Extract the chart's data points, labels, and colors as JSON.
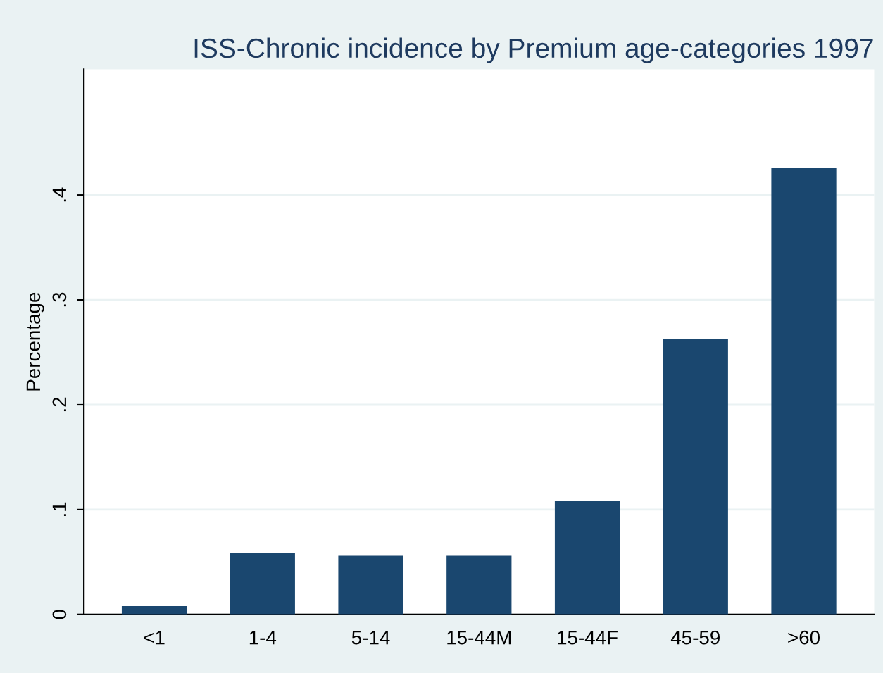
{
  "chart_data": {
    "type": "bar",
    "title": "ISS-Chronic incidence by Premium age-categories 1997",
    "ylabel": "Percentage",
    "categories": [
      "<1",
      "1-4",
      "5-14",
      "15-44M",
      "15-44F",
      "45-59",
      ">60"
    ],
    "values": [
      0.008,
      0.059,
      0.056,
      0.056,
      0.108,
      0.263,
      0.426
    ],
    "color": "#1a476f",
    "ylim": [
      0,
      0.52
    ],
    "yticks": [
      0,
      {
        "value": 0.1,
        "label": ".1"
      },
      {
        "value": 0.2,
        "label": ".2"
      },
      {
        "value": 0.3,
        "label": ".3"
      },
      {
        "value": 0.4,
        "label": ".4"
      }
    ],
    "grid": "y"
  }
}
